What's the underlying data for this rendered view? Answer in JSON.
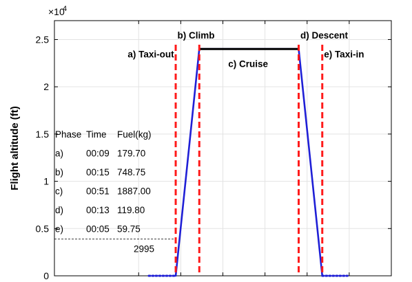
{
  "chart_data": {
    "type": "line",
    "ylabel": "Flight altitude (ft)",
    "xlabel": "",
    "y_exponent_label": "×10",
    "y_exponent_power": "4",
    "y_scale": 10000,
    "ylim": [
      0,
      27000
    ],
    "xlim": [
      0,
      200
    ],
    "yticks": [
      0,
      5000,
      10000,
      15000,
      20000,
      25000
    ],
    "ytick_labels": [
      "0",
      "0.5",
      "1",
      "1.5",
      "2",
      "2.5"
    ],
    "xtick_positions": [
      0,
      50,
      75,
      100,
      125,
      150,
      175,
      200
    ],
    "grid": true,
    "profile": {
      "color": "#1f1fd6",
      "x": [
        56,
        72,
        86,
        145,
        159,
        174
      ],
      "y": [
        0,
        0,
        24000,
        24000,
        0,
        0
      ],
      "dotted_segments": [
        [
          0,
          1
        ],
        [
          4,
          5
        ]
      ]
    },
    "cruise_line": {
      "x": [
        86,
        145
      ],
      "y": 24000,
      "color": "#000000"
    },
    "phase_boundaries": {
      "x": [
        72,
        86,
        145,
        159
      ],
      "color": "#ff1a1a"
    },
    "phase_labels": [
      {
        "text": "a) Taxi-out",
        "x": 71,
        "y": 23100,
        "anchor": "end"
      },
      {
        "text": "b) Climb",
        "x": 73,
        "y": 25100,
        "anchor": "start"
      },
      {
        "text": "c) Cruise",
        "x": 115,
        "y": 22100,
        "anchor": "middle"
      },
      {
        "text": "d) Descent",
        "x": 146,
        "y": 25100,
        "anchor": "start"
      },
      {
        "text": "e) Taxi-in",
        "x": 160,
        "y": 23100,
        "anchor": "start"
      }
    ],
    "table": {
      "headers": [
        "Phase",
        "Time",
        "Fuel(kg)"
      ],
      "rows": [
        [
          "a)",
          "00:09",
          "179.70"
        ],
        [
          "b)",
          "00:15",
          "748.75"
        ],
        [
          "c)",
          "00:51",
          "1887.00"
        ],
        [
          "d)",
          "00:13",
          "119.80"
        ],
        [
          "e)",
          "00:05",
          "59.75"
        ]
      ]
    },
    "reference": {
      "y": 3900,
      "x_start": 0,
      "x_end": 72,
      "label": "2995"
    }
  }
}
